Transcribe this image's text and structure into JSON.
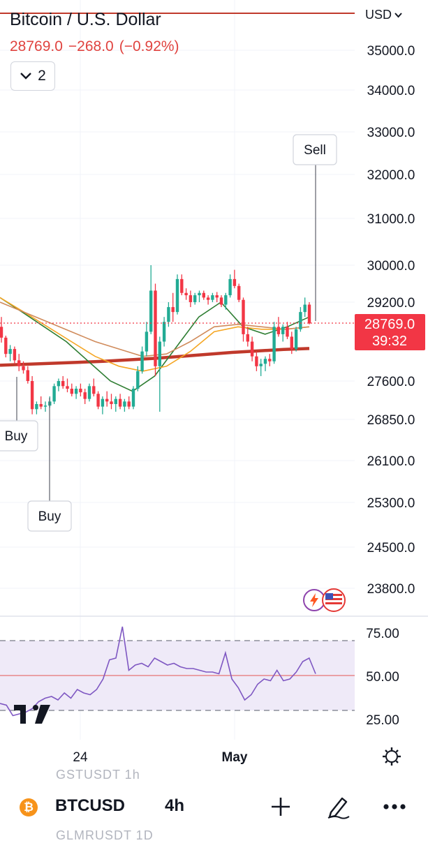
{
  "header": {
    "title": "Bitcoin / U.S. Dollar",
    "price": "28769.0",
    "change": "−268.0",
    "change_pct": "(−0.92%)",
    "indicator_count": "2",
    "currency": "USD"
  },
  "price_axis": {
    "ticks": [
      "35000.0",
      "34000.0",
      "33000.0",
      "32000.0",
      "31000.0",
      "30000.0",
      "29200.0",
      "27600.0",
      "26850.0",
      "26100.0",
      "25300.0",
      "24500.0",
      "23800.0"
    ],
    "current_price_label": "28769.0",
    "countdown": "39:32"
  },
  "rsi_axis": {
    "ticks": [
      "75.00",
      "50.00",
      "25.00"
    ]
  },
  "time_axis": {
    "ticks": [
      "24",
      "May"
    ]
  },
  "markers": [
    {
      "label": "Buy",
      "side": "buy"
    },
    {
      "label": "Buy",
      "side": "buy"
    },
    {
      "label": "Sell",
      "side": "sell"
    }
  ],
  "bottom_bar": {
    "symbol": "BTCUSD",
    "interval": "4h",
    "ghost_above": "GSTUSDT    1h",
    "ghost_below": "GLMRUSDT  1D"
  },
  "icons": [
    "chevron-down-icon",
    "plus-icon",
    "pencil-icon",
    "more-icon",
    "gear-icon",
    "bitcoin-icon",
    "tradingview-logo",
    "lightning-icon",
    "us-flag-icon"
  ],
  "colors": {
    "up": "#22ab94",
    "down": "#f23645",
    "ma_long": "#c0392b",
    "ma_mid": "#2e7d32",
    "ma_orange": "#f5a623",
    "ma_tan": "#d08b5b",
    "rsi": "#7e57c2"
  },
  "chart_data": [
    {
      "type": "candlestick",
      "title": "Bitcoin / U.S. Dollar",
      "interval": "4h",
      "y_scale": "irregular (ticks as printed)",
      "x_ticks": [
        "24",
        "May"
      ],
      "ohlc": [
        [
          28700,
          28900,
          28380,
          28480
        ],
        [
          28480,
          28520,
          28080,
          28150
        ],
        [
          28150,
          28330,
          28000,
          28250
        ],
        [
          28250,
          28300,
          27950,
          28020
        ],
        [
          28020,
          28150,
          27800,
          27900
        ],
        [
          27900,
          28000,
          27750,
          27820
        ],
        [
          27820,
          27900,
          27550,
          27600
        ],
        [
          27600,
          27700,
          26950,
          27050
        ],
        [
          27050,
          27200,
          26950,
          27150
        ],
        [
          27150,
          27300,
          27050,
          27100
        ],
        [
          27100,
          27200,
          27000,
          27120
        ],
        [
          27120,
          27300,
          27080,
          27200
        ],
        [
          27200,
          27550,
          27150,
          27500
        ],
        [
          27500,
          27650,
          27400,
          27600
        ],
        [
          27600,
          27700,
          27450,
          27500
        ],
        [
          27500,
          27650,
          27380,
          27450
        ],
        [
          27450,
          27550,
          27300,
          27350
        ],
        [
          27350,
          27500,
          27250,
          27450
        ],
        [
          27450,
          27550,
          27300,
          27380
        ],
        [
          27380,
          27450,
          27150,
          27250
        ],
        [
          27250,
          27550,
          27200,
          27500
        ],
        [
          27500,
          27650,
          27300,
          27350
        ],
        [
          27350,
          27400,
          27050,
          27100
        ],
        [
          27100,
          27300,
          26950,
          27250
        ],
        [
          27250,
          27400,
          27100,
          27200
        ],
        [
          27200,
          27350,
          27050,
          27150
        ],
        [
          27150,
          27300,
          27000,
          27250
        ],
        [
          27250,
          27350,
          27050,
          27100
        ],
        [
          27100,
          27250,
          27000,
          27200
        ],
        [
          27200,
          27300,
          27050,
          27100
        ],
        [
          27100,
          27500,
          27050,
          27450
        ],
        [
          27450,
          27900,
          27400,
          27800
        ],
        [
          27800,
          28300,
          27750,
          28200
        ],
        [
          28200,
          28800,
          28100,
          28600
        ],
        [
          28600,
          30000,
          28550,
          29450
        ],
        [
          29450,
          29600,
          27700,
          27900
        ],
        [
          27900,
          28500,
          27000,
          28400
        ],
        [
          28400,
          28900,
          28300,
          28800
        ],
        [
          28800,
          29200,
          28700,
          29100
        ],
        [
          29100,
          29400,
          28800,
          29000
        ],
        [
          29000,
          29800,
          28950,
          29700
        ],
        [
          29700,
          29800,
          29350,
          29400
        ],
        [
          29400,
          29500,
          29250,
          29350
        ],
        [
          29350,
          29450,
          29100,
          29200
        ],
        [
          29200,
          29400,
          29150,
          29350
        ],
        [
          29350,
          29450,
          29200,
          29400
        ],
        [
          29400,
          29450,
          29250,
          29300
        ],
        [
          29300,
          29350,
          29150,
          29250
        ],
        [
          29250,
          29400,
          29200,
          29350
        ],
        [
          29350,
          29420,
          29200,
          29300
        ],
        [
          29300,
          29350,
          29100,
          29150
        ],
        [
          29150,
          29400,
          29050,
          29350
        ],
        [
          29350,
          29800,
          29300,
          29700
        ],
        [
          29700,
          29900,
          29500,
          29550
        ],
        [
          29550,
          29600,
          29200,
          29250
        ],
        [
          29250,
          29300,
          28400,
          28550
        ],
        [
          28550,
          28700,
          28300,
          28400
        ],
        [
          28400,
          28500,
          28000,
          28100
        ],
        [
          28100,
          28200,
          27800,
          27900
        ],
        [
          27900,
          28050,
          27700,
          27950
        ],
        [
          27950,
          28100,
          27800,
          28050
        ],
        [
          28050,
          28150,
          27900,
          28000
        ],
        [
          28000,
          28800,
          27950,
          28700
        ],
        [
          28700,
          28900,
          28500,
          28550
        ],
        [
          28550,
          28750,
          28400,
          28700
        ],
        [
          28700,
          28800,
          28450,
          28500
        ],
        [
          28500,
          28600,
          28150,
          28250
        ],
        [
          28250,
          28700,
          28200,
          28650
        ],
        [
          28650,
          29100,
          28600,
          29000
        ],
        [
          29000,
          29300,
          28900,
          29150
        ],
        [
          29150,
          29200,
          28750,
          28769
        ]
      ],
      "overlays": [
        {
          "name": "MA long",
          "values": [
            27920,
            27940,
            27960,
            27980,
            28000,
            28030,
            28060,
            28100,
            28140,
            28180,
            28210,
            28240,
            28260
          ]
        },
        {
          "name": "MA mid",
          "values": [
            29300,
            29000,
            28700,
            28400,
            28000,
            27600,
            27400,
            27700,
            28300,
            28900,
            29200,
            28700,
            28550,
            28700,
            28900
          ]
        },
        {
          "name": "MA orange",
          "values": [
            29300,
            29000,
            28700,
            28400,
            28100,
            27900,
            27800,
            27900,
            28200,
            28600,
            28700,
            28650,
            28650,
            28700
          ]
        },
        {
          "name": "MA tan",
          "values": [
            29200,
            29000,
            28800,
            28600,
            28400,
            28250,
            28100,
            28150,
            28400,
            28700,
            28750,
            28700,
            28650,
            28700
          ]
        }
      ],
      "current_price": 28769.0
    },
    {
      "type": "line",
      "ylim": [
        25,
        75
      ],
      "levels": [
        70,
        50,
        30
      ],
      "series": [
        {
          "values": [
            34,
            33,
            27,
            28,
            29,
            31,
            35,
            37,
            38,
            36,
            40,
            37,
            42,
            40,
            39,
            42,
            48,
            59,
            60,
            78,
            53,
            56,
            57,
            55,
            60,
            58,
            56,
            57,
            55,
            54,
            54,
            53,
            52,
            52,
            51,
            63,
            48,
            43,
            36,
            39,
            45,
            48,
            47,
            53,
            47,
            48,
            52,
            58,
            60,
            51
          ]
        }
      ]
    }
  ]
}
